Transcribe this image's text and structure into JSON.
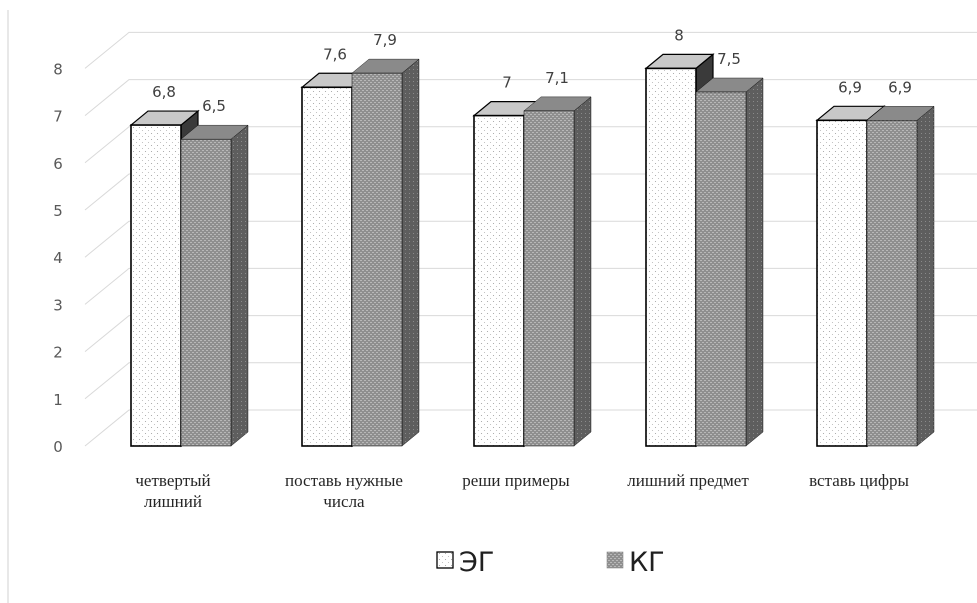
{
  "chart_data": {
    "type": "bar",
    "title": "",
    "xlabel": "",
    "ylabel": "",
    "ylim": [
      0,
      8
    ],
    "yticks": [
      "0",
      "1",
      "2",
      "3",
      "4",
      "5",
      "6",
      "7",
      "8"
    ],
    "categories": [
      [
        "четвертый",
        "лишний"
      ],
      [
        "поставь нужные",
        "числа"
      ],
      [
        "реши примеры"
      ],
      [
        "лишний предмет"
      ],
      [
        "вставь цифры"
      ]
    ],
    "series": [
      {
        "name": "ЭГ",
        "values": [
          6.8,
          7.6,
          7,
          8,
          6.9
        ],
        "labels": [
          "6,8",
          "7,6",
          "7",
          "8",
          "6,9"
        ],
        "color": "#ffffff",
        "pattern": "dots"
      },
      {
        "name": "КГ",
        "values": [
          6.5,
          7.9,
          7.1,
          7.5,
          6.9
        ],
        "labels": [
          "6,5",
          "7,9",
          "7,1",
          "7,5",
          "6,9"
        ],
        "color": "#8c8c8c",
        "pattern": "dense-hatch"
      }
    ],
    "grid": true,
    "legend_position": "bottom",
    "three_d": true
  }
}
